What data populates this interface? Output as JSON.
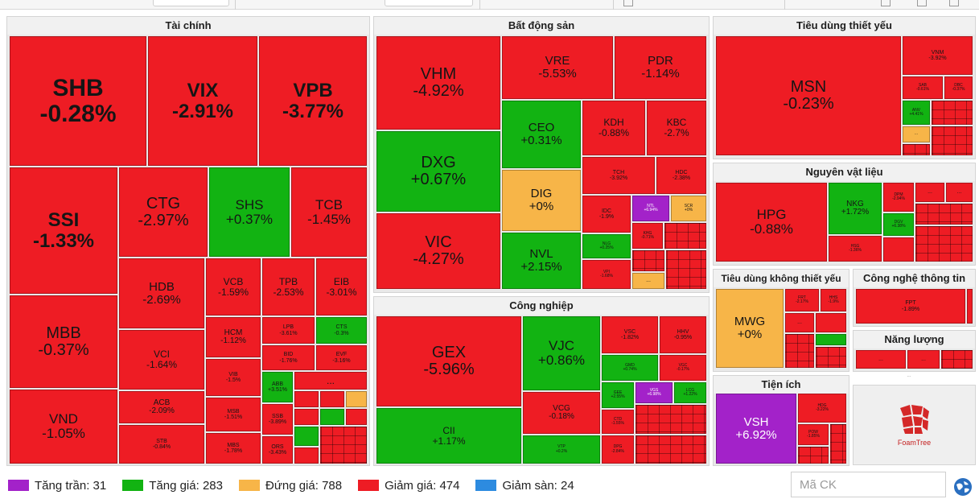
{
  "colors": {
    "ceiling": "#a322c9",
    "up": "#12b312",
    "flat": "#f7b548",
    "down": "#ee1c24",
    "floor": "#2d8be0"
  },
  "groups": {
    "tai_chinh": "Tài chính",
    "bat_dong_san": "Bất động sản",
    "tieu_dung_thiet_yeu": "Tiêu dùng thiết yếu",
    "nguyen_vat_lieu": "Nguyên vật liệu",
    "tieu_dung_khong_thiet_yeu": "Tiêu dùng không thiết yếu",
    "cong_nghe_thong_tin": "Công nghệ thông tin",
    "nang_luong": "Năng lượng",
    "cong_nghiep": "Công nghiệp",
    "tien_ich": "Tiện ích"
  },
  "tiles": [
    {
      "sym": "SHB",
      "pct": "-0.28%"
    },
    {
      "sym": "VIX",
      "pct": "-2.91%"
    },
    {
      "sym": "VPB",
      "pct": "-3.77%"
    },
    {
      "sym": "SSI",
      "pct": "-1.33%"
    },
    {
      "sym": "CTG",
      "pct": "-2.97%"
    },
    {
      "sym": "SHS",
      "pct": "+0.37%"
    },
    {
      "sym": "TCB",
      "pct": "-1.45%"
    },
    {
      "sym": "MBB",
      "pct": "-0.37%"
    },
    {
      "sym": "HDB",
      "pct": "-2.69%"
    },
    {
      "sym": "VCB",
      "pct": "-1.59%"
    },
    {
      "sym": "TPB",
      "pct": "-2.53%"
    },
    {
      "sym": "EIB",
      "pct": "-3.01%"
    },
    {
      "sym": "VCI",
      "pct": "-1.64%"
    },
    {
      "sym": "HCM",
      "pct": "-1.12%"
    },
    {
      "sym": "LPB",
      "pct": "-3.61%"
    },
    {
      "sym": "CTS",
      "pct": "-0.3%"
    },
    {
      "sym": "BID",
      "pct": "-1.76%"
    },
    {
      "sym": "EVF",
      "pct": "-3.16%"
    },
    {
      "sym": "VIB",
      "pct": "-1.5%"
    },
    {
      "sym": "ABB",
      "pct": "+3.51%"
    },
    {
      "sym": "VND",
      "pct": "-1.05%"
    },
    {
      "sym": "ACB",
      "pct": "-2.09%"
    },
    {
      "sym": "MSB",
      "pct": "-1.51%"
    },
    {
      "sym": "SSB",
      "pct": "-3.89%"
    },
    {
      "sym": "STB",
      "pct": "-0.84%"
    },
    {
      "sym": "MBS",
      "pct": "-1.78%"
    },
    {
      "sym": "ORS",
      "pct": "-3.43%"
    },
    {
      "sym": "VHM",
      "pct": "-4.92%"
    },
    {
      "sym": "VRE",
      "pct": "-5.53%"
    },
    {
      "sym": "PDR",
      "pct": "-1.14%"
    },
    {
      "sym": "CEO",
      "pct": "+0.31%"
    },
    {
      "sym": "KDH",
      "pct": "-0.88%"
    },
    {
      "sym": "KBC",
      "pct": "-2.7%"
    },
    {
      "sym": "DXG",
      "pct": "+0.67%"
    },
    {
      "sym": "TCH",
      "pct": "-3.92%"
    },
    {
      "sym": "HDC",
      "pct": "-2.38%"
    },
    {
      "sym": "DIG",
      "pct": "+0%"
    },
    {
      "sym": "IDC",
      "pct": "-1.9%"
    },
    {
      "sym": "NTL",
      "pct": "+6.94%"
    },
    {
      "sym": "SCR",
      "pct": "+0%"
    },
    {
      "sym": "VIC",
      "pct": "-4.27%"
    },
    {
      "sym": "NVL",
      "pct": "+2.15%"
    },
    {
      "sym": "NLG",
      "pct": "+0.25%"
    },
    {
      "sym": "KHG",
      "pct": "-0.71%"
    },
    {
      "sym": "VPI",
      "pct": "-1.68%"
    },
    {
      "sym": "MSN",
      "pct": "-0.23%"
    },
    {
      "sym": "VNM",
      "pct": "-3.92%"
    },
    {
      "sym": "SAB",
      "pct": "-0.61%"
    },
    {
      "sym": "DBC",
      "pct": "-0.37%"
    },
    {
      "sym": "ANV",
      "pct": "+4.41%"
    },
    {
      "sym": "HPG",
      "pct": "-0.88%"
    },
    {
      "sym": "NKG",
      "pct": "+1.72%"
    },
    {
      "sym": "DPM",
      "pct": "-2.94%"
    },
    {
      "sym": "DGV",
      "pct": "+6.38%"
    },
    {
      "sym": "HSG",
      "pct": "-1.36%"
    },
    {
      "sym": "MWG",
      "pct": "+0%"
    },
    {
      "sym": "FRT",
      "pct": "-2.17%"
    },
    {
      "sym": "HHS",
      "pct": "-1.9%"
    },
    {
      "sym": "FPT",
      "pct": "-1.89%"
    },
    {
      "sym": "GEX",
      "pct": "-5.96%"
    },
    {
      "sym": "VJC",
      "pct": "+0.86%"
    },
    {
      "sym": "VSC",
      "pct": "-1.82%"
    },
    {
      "sym": "HHV",
      "pct": "-0.95%"
    },
    {
      "sym": "GMD",
      "pct": "+0.74%"
    },
    {
      "sym": "VGC",
      "pct": "-0.17%"
    },
    {
      "sym": "VCG",
      "pct": "-0.18%"
    },
    {
      "sym": "GEE",
      "pct": "+2.55%"
    },
    {
      "sym": "VGS",
      "pct": "+6.98%"
    },
    {
      "sym": "LCG",
      "pct": "+1.22%"
    },
    {
      "sym": "CII",
      "pct": "+1.17%"
    },
    {
      "sym": "CTD",
      "pct": "-1.55%"
    },
    {
      "sym": "VTP",
      "pct": "+0.2%"
    },
    {
      "sym": "DPG",
      "pct": "-2.84%"
    },
    {
      "sym": "VSH",
      "pct": "+6.92%"
    },
    {
      "sym": "HDG",
      "pct": "-3.22%"
    },
    {
      "sym": "POW",
      "pct": "-1.85%"
    }
  ],
  "more_labels": [
    "...",
    "...",
    "...",
    "...",
    "...",
    "...",
    "...",
    "...",
    "...",
    "...",
    "...",
    "...",
    "...",
    "...",
    "...",
    "...",
    "...",
    "...",
    "...",
    "..."
  ],
  "logo": {
    "name": "FoamTree"
  },
  "legend": [
    {
      "label": "Tăng trần: 31",
      "color": "#a322c9"
    },
    {
      "label": "Tăng giá: 283",
      "color": "#12b312"
    },
    {
      "label": "Đứng giá: 788",
      "color": "#f7b548"
    },
    {
      "label": "Giảm giá: 474",
      "color": "#ee1c24"
    },
    {
      "label": "Giảm sàn: 24",
      "color": "#2d8be0"
    }
  ],
  "search": {
    "placeholder": "Mã CK",
    "value": ""
  }
}
